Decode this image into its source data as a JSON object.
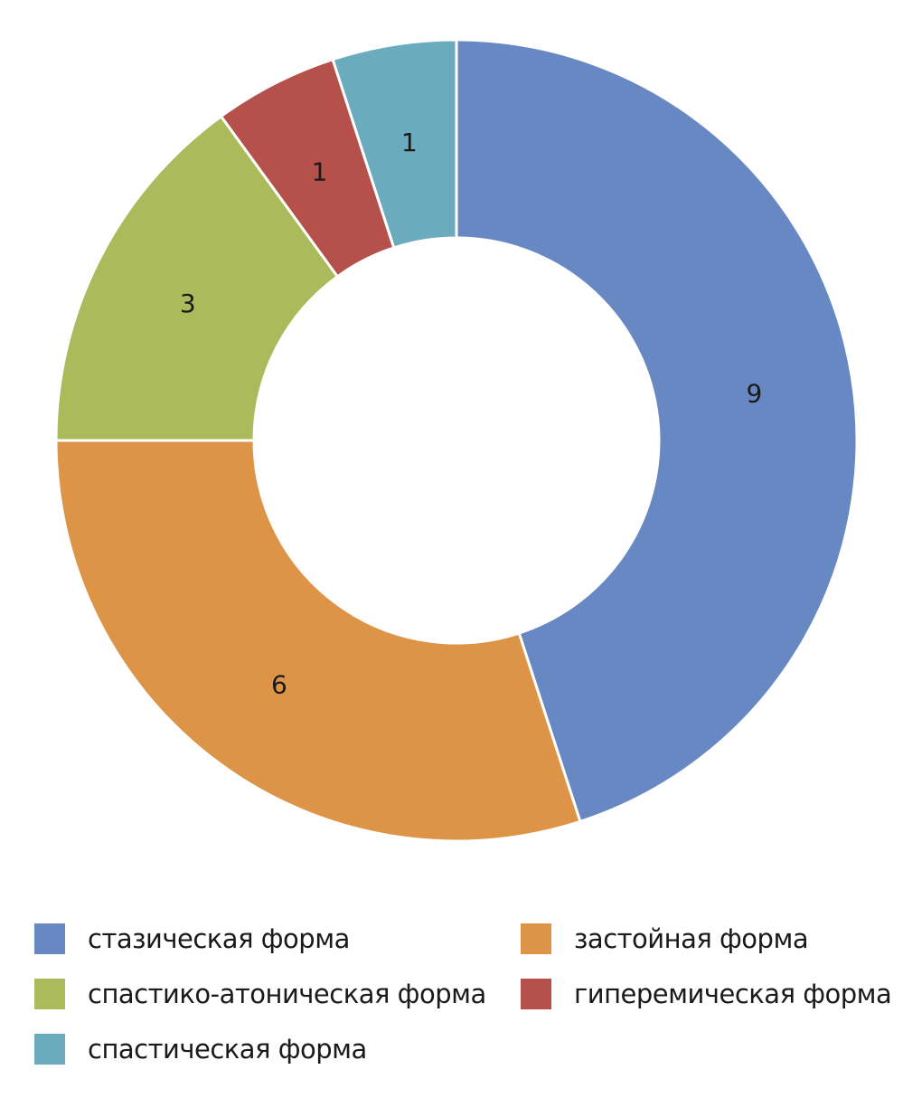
{
  "chart_data": {
    "type": "pie",
    "style": "donut",
    "series": [
      {
        "name": "стазическая форма",
        "value": 9,
        "color": "#6888c4"
      },
      {
        "name": "застойная форма",
        "value": 6,
        "color": "#dd9447"
      },
      {
        "name": "спастико-атоническая форма",
        "value": 3,
        "color": "#abbb5b"
      },
      {
        "name": "гиперемическая форма",
        "value": 1,
        "color": "#b5504b"
      },
      {
        "name": "спастическая форма",
        "value": 1,
        "color": "#6aabbd"
      }
    ],
    "data_labels": [
      "9",
      "6",
      "3",
      "1",
      "1"
    ],
    "legend_position": "bottom"
  }
}
